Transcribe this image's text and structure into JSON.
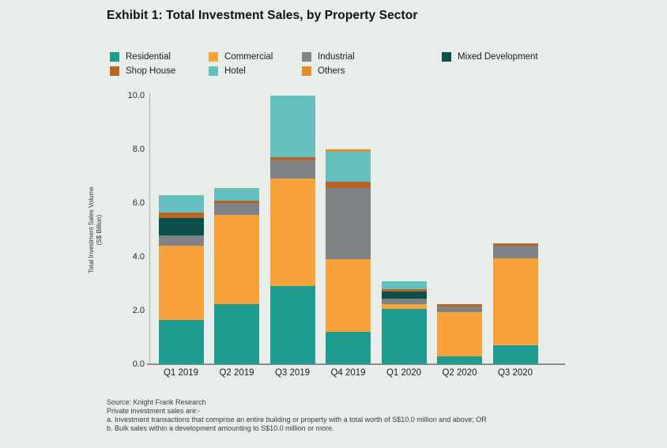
{
  "page": {
    "title": "Exhibit 1: Total Investment Sales, by Property Sector",
    "background_color": "#E8EDEA"
  },
  "chart_data": {
    "type": "bar",
    "stacked": true,
    "title": "Exhibit 1: Total Investment Sales, by Property Sector",
    "xlabel": "",
    "ylabel": "Total Investment Sales Volume (S$ Billion)",
    "ylabel_lines": [
      "Total Investment Sales Volume",
      "(S$ Billion)"
    ],
    "ylim": [
      0,
      10
    ],
    "ytick_labels": [
      "0.0",
      "2.0",
      "4.0",
      "6.0",
      "8.0",
      "10.0"
    ],
    "grid": false,
    "legend_position": "top",
    "legend_rows": [
      [
        "Residential",
        "Commercial",
        "Industrial",
        "Mixed Development"
      ],
      [
        "Shop House",
        "Hotel",
        "Others"
      ]
    ],
    "categories": [
      "Q1 2019",
      "Q2 2019",
      "Q3 2019",
      "Q4 2019",
      "Q1 2020",
      "Q2 2020",
      "Q3 2020"
    ],
    "series": [
      {
        "name": "Residential",
        "color": "#1F9C90",
        "values": [
          1.65,
          2.25,
          2.9,
          1.2,
          2.05,
          0.3,
          0.7
        ]
      },
      {
        "name": "Commercial",
        "color": "#F7A23B",
        "values": [
          2.75,
          3.3,
          4.0,
          2.7,
          0.2,
          1.65,
          3.25
        ]
      },
      {
        "name": "Industrial",
        "color": "#7E8486",
        "values": [
          0.4,
          0.45,
          0.7,
          2.65,
          0.2,
          0.2,
          0.45
        ]
      },
      {
        "name": "Mixed Development",
        "color": "#0A4F4B",
        "values": [
          0.65,
          0,
          0,
          0,
          0.25,
          0,
          0
        ]
      },
      {
        "name": "Shop House",
        "color": "#B96325",
        "values": [
          0.2,
          0.1,
          0.1,
          0.25,
          0.1,
          0.1,
          0.1
        ]
      },
      {
        "name": "Hotel",
        "color": "#65C0BF",
        "values": [
          0.65,
          0.45,
          2.3,
          1.1,
          0.3,
          0,
          0
        ]
      },
      {
        "name": "Others",
        "color": "#E38E2D",
        "values": [
          0,
          0,
          0,
          0.1,
          0,
          0,
          0
        ]
      }
    ],
    "totals": [
      6.3,
      6.55,
      10.0,
      8.0,
      3.1,
      2.25,
      4.5
    ]
  },
  "footer": {
    "lines": [
      "Source: Knight Frank Research",
      "Private investment sales are:-",
      "a. Investment transactions that comprise an entire building or property with a total worth of S$10.0 million and above; OR",
      "b. Bulk sales within a development amounting to S$10.0 million or more."
    ]
  }
}
